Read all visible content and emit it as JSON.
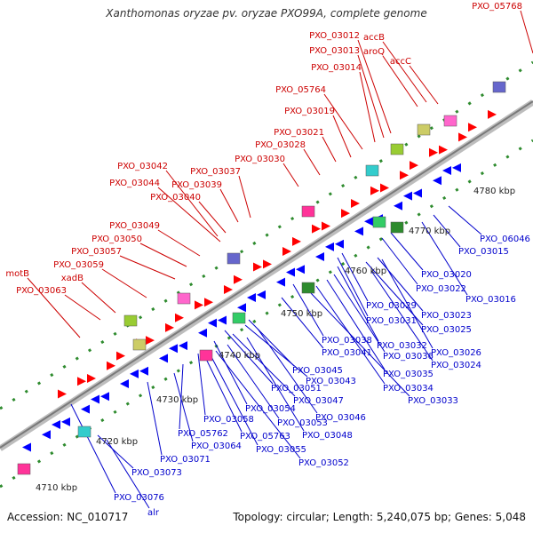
{
  "title": "Xanthomonas oryzae pv. oryzae PXO99A, complete genome",
  "footer": {
    "accession": "Accession: NC_010717",
    "stats": "Topology: circular; Length: 5,240,075 bp; Genes: 5,048"
  },
  "colors": {
    "backbone": "#8a8a8a",
    "forward_label": "#cc0000",
    "reverse_label": "#0000cc",
    "forward_arrow": "#ff0000",
    "reverse_arrow": "#0000ff",
    "tick": "#2e8b2e"
  },
  "end_label": "PXO_05768",
  "kbp_ticks": [
    "4710 kbp",
    "4720 kbp",
    "4730 kbp",
    "4740 kbp",
    "4750 kbp",
    "4760 kbp",
    "4770 kbp",
    "4780 kbp"
  ],
  "forward_labels": [
    "PXO_05768",
    "PXO_03012",
    "PXO_03013",
    "PXO_03014",
    "accB",
    "aroQ",
    "accC",
    "PXO_05764",
    "PXO_03019",
    "PXO_03021",
    "PXO_03028",
    "PXO_03030",
    "PXO_03042",
    "PXO_03037",
    "PXO_03044",
    "PXO_03039",
    "PXO_03040",
    "PXO_03049",
    "PXO_03050",
    "PXO_03057",
    "PXO_03059",
    "motB",
    "xadB",
    "PXO_03063"
  ],
  "reverse_labels": [
    "PXO_06046",
    "PXO_03015",
    "PXO_03020",
    "PXO_03022",
    "PXO_03016",
    "PXO_03029",
    "PXO_03031",
    "PXO_03023",
    "PXO_03025",
    "PXO_03038",
    "PXO_03032",
    "PXO_03026",
    "PXO_03041",
    "PXO_03036",
    "PXO_03024",
    "PXO_03045",
    "PXO_03035",
    "PXO_03043",
    "PXO_03034",
    "PXO_03051",
    "PXO_03033",
    "PXO_03047",
    "PXO_03054",
    "PXO_03046",
    "PXO_03058",
    "PXO_03053",
    "PXO_05762",
    "PXO_05763",
    "PXO_03048",
    "PXO_03064",
    "PXO_03055",
    "PXO_03071",
    "PXO_03052",
    "PXO_03073",
    "PXO_03076",
    "alr"
  ]
}
